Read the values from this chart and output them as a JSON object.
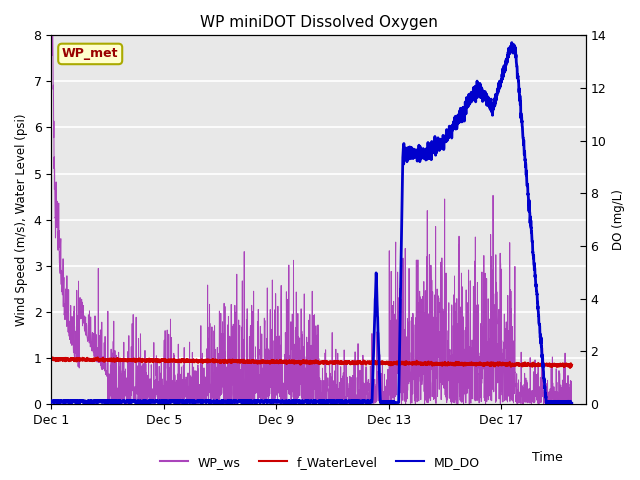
{
  "title": "WP miniDOT Dissolved Oxygen",
  "ylabel_left": "Wind Speed (m/s), Water Level (psi)",
  "ylabel_right": "DO (mg/L)",
  "xlabel": "Time",
  "annotation_text": "WP_met",
  "ylim_left": [
    0.0,
    8.0
  ],
  "ylim_right": [
    0.0,
    14.0
  ],
  "yticks_left": [
    0.0,
    1.0,
    2.0,
    3.0,
    4.0,
    5.0,
    6.0,
    7.0,
    8.0
  ],
  "yticks_right": [
    0,
    2,
    4,
    6,
    8,
    10,
    12,
    14
  ],
  "xtick_positions": [
    0,
    4,
    8,
    12,
    16
  ],
  "xtick_labels": [
    "Dec 1",
    "Dec 5",
    "Dec 9",
    "Dec 13",
    "Dec 17"
  ],
  "xlim": [
    0,
    19
  ],
  "color_ws": "#AA44BB",
  "color_wl": "#CC0000",
  "color_do": "#0000CC",
  "legend_labels": [
    "WP_ws",
    "f_WaterLevel",
    "MD_DO"
  ],
  "bg_color": "#E8E8E8",
  "fig_bg": "#FFFFFF",
  "n_points": 3000
}
